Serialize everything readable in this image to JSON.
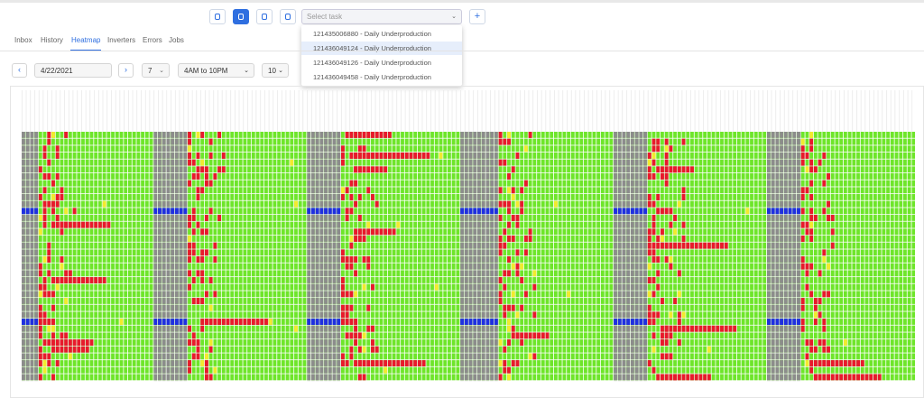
{
  "toolbar": {
    "task_placeholder": "Select task",
    "task_options": [
      "121435006880 - Daily Underproduction",
      "121436049124 - Daily Underproduction",
      "121436049126 - Daily Underproduction",
      "121436049458 - Daily Underproduction"
    ]
  },
  "tabs": [
    "Inbox",
    "History",
    "Heatmap",
    "Inverters",
    "Errors",
    "Jobs"
  ],
  "controls": {
    "date": "4/22/2021",
    "days": "7",
    "hours": "4AM to 10PM",
    "interval": "10"
  }
}
